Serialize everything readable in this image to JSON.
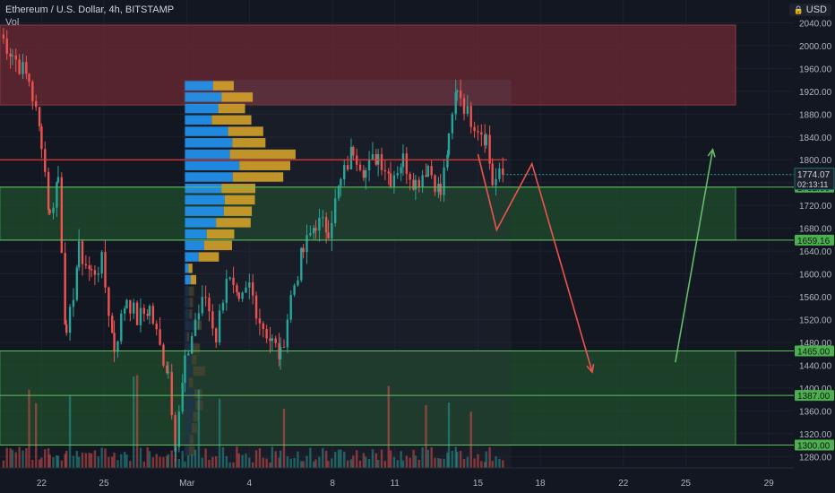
{
  "legend": {
    "title": "Ethereum / U.S. Dollar, 4h, BITSTAMP",
    "volume_label": "Vol"
  },
  "currency_button": {
    "label": "USD",
    "icon": "lock-icon"
  },
  "colors": {
    "background": "#131722",
    "up": "#26a69a",
    "down": "#ef5350",
    "resistance_zone": "#6e2a33",
    "support_zone": "#1f4d2b",
    "level_line": "#5fbf5f",
    "current_price_line": "#e53935",
    "arrow_down": "#ef5350",
    "arrow_up": "#66bb6a"
  },
  "chart_data": {
    "type": "candlestick",
    "title": "Ethereum / U.S. Dollar, 4h, BITSTAMP",
    "ylim": [
      1260,
      2080
    ],
    "y_ticks": [
      1280,
      1320,
      1360,
      1400,
      1440,
      1480,
      1520,
      1560,
      1600,
      1640,
      1680,
      1720,
      1760,
      1800,
      1840,
      1880,
      1920,
      1960,
      2000,
      2040
    ],
    "y_tick_labels": [
      "1280.00",
      "1320.00",
      "1360.00",
      "1400.00",
      "1440.00",
      "1480.00",
      "1520.00",
      "1560.00",
      "1600.00",
      "1640.00",
      "1680.00",
      "1720.00",
      "1760.00",
      "1800.00",
      "1840.00",
      "1880.00",
      "1920.00",
      "1960.00",
      "2000.00",
      "2040.00"
    ],
    "x_ticks": [
      {
        "label": "22",
        "day": -7
      },
      {
        "label": "25",
        "day": -4
      },
      {
        "label": "Mar",
        "day": 0
      },
      {
        "label": "4",
        "day": 3
      },
      {
        "label": "8",
        "day": 7
      },
      {
        "label": "11",
        "day": 10
      },
      {
        "label": "15",
        "day": 14
      },
      {
        "label": "18",
        "day": 17
      },
      {
        "label": "22",
        "day": 21
      },
      {
        "label": "25",
        "day": 24
      },
      {
        "label": "29",
        "day": 28
      }
    ],
    "x_range_days": [
      -9,
      29.2
    ],
    "current_price": {
      "value": 1774.07,
      "label": "1774.07",
      "countdown": "02:13:11"
    },
    "levels": [
      {
        "value": 1752.0,
        "label": "1752.00"
      },
      {
        "value": 1659.16,
        "label": "1659.16"
      },
      {
        "value": 1465.0,
        "label": "1465.00"
      },
      {
        "value": 1387.0,
        "label": "1387.00"
      },
      {
        "value": 1300.0,
        "label": "1300.00"
      }
    ],
    "horizontal_line": {
      "value": 1800
    },
    "zones": [
      {
        "kind": "resistance",
        "from": 1896,
        "to": 2036,
        "day_start": -9,
        "day_end": 26.4
      },
      {
        "kind": "support",
        "from": 1659.16,
        "to": 1752.0,
        "day_start": -9,
        "day_end": 26.4
      },
      {
        "kind": "support",
        "from": 1300,
        "to": 1465,
        "day_start": -9,
        "day_end": 26.4
      }
    ],
    "projection_down": [
      [
        14.0,
        1810
      ],
      [
        14.9,
        1677
      ],
      [
        16.6,
        1793
      ],
      [
        19.5,
        1428
      ]
    ],
    "projection_up": [
      [
        23.5,
        1445
      ],
      [
        25.3,
        1818
      ]
    ],
    "anchors": [
      {
        "day": -9.0,
        "price": 2020
      },
      {
        "day": -8.4,
        "price": 1985
      },
      {
        "day": -7.6,
        "price": 1940
      },
      {
        "day": -7.0,
        "price": 1835
      },
      {
        "day": -6.6,
        "price": 1700
      },
      {
        "day": -6.2,
        "price": 1770
      },
      {
        "day": -5.8,
        "price": 1480
      },
      {
        "day": -5.2,
        "price": 1640
      },
      {
        "day": -4.6,
        "price": 1600
      },
      {
        "day": -4.1,
        "price": 1620
      },
      {
        "day": -3.5,
        "price": 1470
      },
      {
        "day": -2.9,
        "price": 1560
      },
      {
        "day": -2.4,
        "price": 1520
      },
      {
        "day": -1.8,
        "price": 1540
      },
      {
        "day": -1.3,
        "price": 1470
      },
      {
        "day": -0.9,
        "price": 1430
      },
      {
        "day": -0.55,
        "price": 1300
      },
      {
        "day": -0.1,
        "price": 1440
      },
      {
        "day": 0.4,
        "price": 1520
      },
      {
        "day": 0.9,
        "price": 1560
      },
      {
        "day": 1.4,
        "price": 1490
      },
      {
        "day": 1.9,
        "price": 1600
      },
      {
        "day": 2.5,
        "price": 1540
      },
      {
        "day": 3.0,
        "price": 1580
      },
      {
        "day": 3.5,
        "price": 1520
      },
      {
        "day": 4.1,
        "price": 1480
      },
      {
        "day": 4.5,
        "price": 1455
      },
      {
        "day": 5.0,
        "price": 1560
      },
      {
        "day": 5.6,
        "price": 1640
      },
      {
        "day": 6.2,
        "price": 1690
      },
      {
        "day": 6.8,
        "price": 1680
      },
      {
        "day": 7.4,
        "price": 1760
      },
      {
        "day": 8.0,
        "price": 1820
      },
      {
        "day": 8.6,
        "price": 1780
      },
      {
        "day": 9.2,
        "price": 1810
      },
      {
        "day": 9.8,
        "price": 1770
      },
      {
        "day": 10.4,
        "price": 1800
      },
      {
        "day": 11.0,
        "price": 1760
      },
      {
        "day": 11.6,
        "price": 1790
      },
      {
        "day": 12.2,
        "price": 1740
      },
      {
        "day": 12.6,
        "price": 1830
      },
      {
        "day": 13.0,
        "price": 1930
      },
      {
        "day": 13.5,
        "price": 1880
      },
      {
        "day": 14.0,
        "price": 1860
      },
      {
        "day": 14.4,
        "price": 1840
      },
      {
        "day": 14.7,
        "price": 1760
      },
      {
        "day": 15.2,
        "price": 1774
      }
    ]
  }
}
